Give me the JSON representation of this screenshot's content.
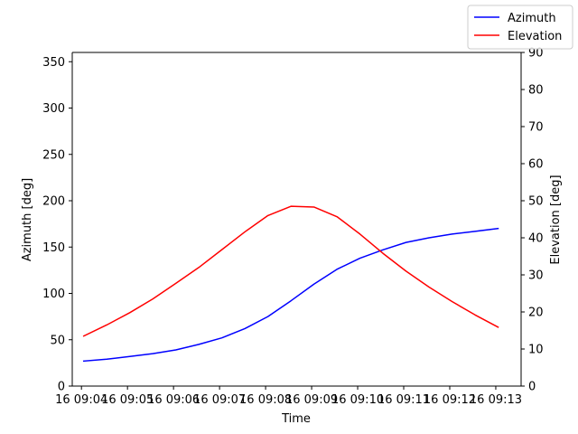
{
  "chart_data": {
    "type": "line",
    "xlabel": "Time",
    "ylabel_left": "Azimuth [deg]",
    "ylabel_right": "Elevation [deg]",
    "x_tick_labels": [
      "16 09:04",
      "16 09:05",
      "16 09:06",
      "16 09:07",
      "16 09:08",
      "16 09:09",
      "16 09:10",
      "16 09:11",
      "16 09:12",
      "16 09:13"
    ],
    "x_tick_minutes": [
      4,
      5,
      6,
      7,
      8,
      9,
      10,
      11,
      12,
      13
    ],
    "xlim_minutes": [
      3.8,
      13.55
    ],
    "ylim_left": [
      0,
      360
    ],
    "yticks_left": [
      0,
      50,
      100,
      150,
      200,
      250,
      300,
      350
    ],
    "ylim_right": [
      0,
      90
    ],
    "yticks_right": [
      0,
      10,
      20,
      30,
      40,
      50,
      60,
      70,
      80,
      90
    ],
    "x_minutes": [
      4.05,
      4.55,
      5.05,
      5.55,
      6.05,
      6.55,
      7.05,
      7.55,
      8.05,
      8.55,
      9.05,
      9.55,
      10.05,
      10.55,
      11.05,
      11.55,
      12.05,
      12.55,
      13.05
    ],
    "series": [
      {
        "name": "Azimuth",
        "axis": "left",
        "color": "#0000ff",
        "values": [
          27,
          29,
          32,
          35,
          39,
          45,
          52,
          62,
          75,
          92,
          110,
          126,
          138,
          147,
          155,
          160,
          164,
          167,
          170
        ]
      },
      {
        "name": "Elevation",
        "axis": "right",
        "color": "#ff0000",
        "values": [
          13.5,
          16.5,
          19.8,
          23.5,
          27.7,
          32.0,
          36.8,
          41.6,
          46.0,
          48.5,
          48.3,
          45.7,
          41.0,
          35.8,
          31.0,
          26.7,
          22.8,
          19.2,
          15.9
        ]
      }
    ],
    "legend": {
      "position": "top-right",
      "entries": [
        {
          "label": "Azimuth",
          "color": "#0000ff"
        },
        {
          "label": "Elevation",
          "color": "#ff0000"
        }
      ]
    },
    "grid": false
  }
}
